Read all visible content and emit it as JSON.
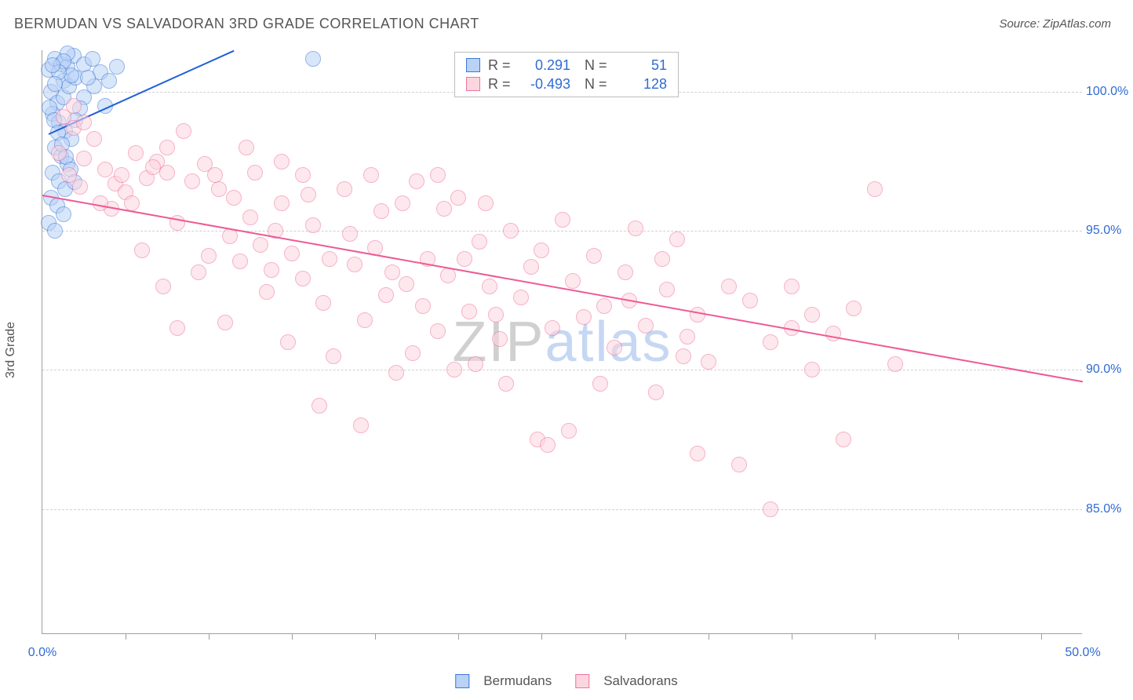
{
  "title": "BERMUDAN VS SALVADORAN 3RD GRADE CORRELATION CHART",
  "source": "Source: ZipAtlas.com",
  "ylabel": "3rd Grade",
  "watermark": {
    "part1": "ZIP",
    "part2": "atlas"
  },
  "chart": {
    "type": "scatter",
    "xlim": [
      0,
      50
    ],
    "ylim": [
      80.5,
      101.5
    ],
    "background_color": "#ffffff",
    "grid_color": "#d0d0d0",
    "axis_color": "#9e9e9e",
    "tick_label_color": "#2f6bd6",
    "xticks_major": [
      0,
      50
    ],
    "xticks_minor": [
      4,
      8,
      12,
      16,
      20,
      24,
      28,
      32,
      36,
      40,
      44,
      48
    ],
    "yticks": [
      85.0,
      90.0,
      95.0,
      100.0
    ],
    "ytick_labels": [
      "85.0%",
      "90.0%",
      "95.0%",
      "100.0%"
    ],
    "xtick_labels": [
      "0.0%",
      "50.0%"
    ],
    "marker_radius": 10,
    "marker_opacity": 0.55,
    "marker_border_width": 1.2
  },
  "series": [
    {
      "name": "Bermudans",
      "fill_color": "#b9d2f6",
      "border_color": "#3e78d6",
      "trend_color": "#1f5ed8",
      "r_value": "0.291",
      "n_value": "51",
      "trend": {
        "x1": 0.3,
        "y1": 98.5,
        "x2": 9.2,
        "y2": 101.5,
        "width": 2.2
      },
      "points": [
        [
          0.3,
          100.8
        ],
        [
          0.6,
          101.2
        ],
        [
          0.9,
          101.0
        ],
        [
          1.2,
          100.9
        ],
        [
          1.5,
          101.3
        ],
        [
          1.0,
          100.4
        ],
        [
          0.4,
          100.0
        ],
        [
          0.7,
          99.6
        ],
        [
          1.0,
          99.8
        ],
        [
          1.3,
          100.2
        ],
        [
          1.6,
          100.5
        ],
        [
          2.0,
          101.0
        ],
        [
          2.4,
          101.2
        ],
        [
          2.8,
          100.7
        ],
        [
          3.2,
          100.4
        ],
        [
          3.6,
          100.9
        ],
        [
          0.5,
          99.2
        ],
        [
          0.8,
          98.9
        ],
        [
          1.1,
          98.6
        ],
        [
          1.4,
          98.3
        ],
        [
          0.6,
          98.0
        ],
        [
          0.9,
          97.7
        ],
        [
          1.2,
          97.4
        ],
        [
          0.5,
          97.1
        ],
        [
          0.8,
          96.8
        ],
        [
          1.1,
          96.5
        ],
        [
          0.4,
          96.2
        ],
        [
          0.7,
          95.9
        ],
        [
          1.0,
          95.6
        ],
        [
          0.3,
          95.3
        ],
        [
          0.6,
          95.0
        ],
        [
          0.35,
          99.45
        ],
        [
          0.55,
          99.0
        ],
        [
          0.75,
          98.55
        ],
        [
          0.95,
          98.1
        ],
        [
          1.15,
          97.65
        ],
        [
          1.35,
          97.2
        ],
        [
          1.55,
          96.75
        ],
        [
          2.5,
          100.2
        ],
        [
          2.0,
          99.8
        ],
        [
          1.8,
          99.4
        ],
        [
          1.6,
          99.0
        ],
        [
          1.4,
          100.6
        ],
        [
          1.2,
          101.4
        ],
        [
          1.0,
          101.1
        ],
        [
          0.8,
          100.7
        ],
        [
          0.6,
          100.3
        ],
        [
          2.2,
          100.5
        ],
        [
          3.0,
          99.5
        ],
        [
          13.0,
          101.2
        ],
        [
          0.5,
          100.95
        ]
      ]
    },
    {
      "name": "Salvadorans",
      "fill_color": "#fcd6df",
      "border_color": "#f073a0",
      "trend_color": "#ee5a94",
      "r_value": "-0.493",
      "n_value": "128",
      "trend": {
        "x1": 0.0,
        "y1": 96.3,
        "x2": 50.0,
        "y2": 89.6,
        "width": 2.2
      },
      "points": [
        [
          1.0,
          99.1
        ],
        [
          1.5,
          98.7
        ],
        [
          2.0,
          98.9
        ],
        [
          2.5,
          98.3
        ],
        [
          2.0,
          97.6
        ],
        [
          3.0,
          97.2
        ],
        [
          3.5,
          96.7
        ],
        [
          4.0,
          96.4
        ],
        [
          4.5,
          97.8
        ],
        [
          5.0,
          96.9
        ],
        [
          5.5,
          97.5
        ],
        [
          6.0,
          97.1
        ],
        [
          6.8,
          98.6
        ],
        [
          7.2,
          96.8
        ],
        [
          7.8,
          97.4
        ],
        [
          8.5,
          96.5
        ],
        [
          9.0,
          94.8
        ],
        [
          9.5,
          93.9
        ],
        [
          10.0,
          95.5
        ],
        [
          10.5,
          94.5
        ],
        [
          11.0,
          93.6
        ],
        [
          11.5,
          96.0
        ],
        [
          12.0,
          94.2
        ],
        [
          12.5,
          93.3
        ],
        [
          13.0,
          95.2
        ],
        [
          13.5,
          92.4
        ],
        [
          14.0,
          90.5
        ],
        [
          14.5,
          96.5
        ],
        [
          15.0,
          93.8
        ],
        [
          15.5,
          91.8
        ],
        [
          16.0,
          94.4
        ],
        [
          16.5,
          92.7
        ],
        [
          17.0,
          89.9
        ],
        [
          17.5,
          93.1
        ],
        [
          18.0,
          96.8
        ],
        [
          18.5,
          94.0
        ],
        [
          19.0,
          91.4
        ],
        [
          19.5,
          93.4
        ],
        [
          20.0,
          96.2
        ],
        [
          20.5,
          92.1
        ],
        [
          21.0,
          94.6
        ],
        [
          21.5,
          93.0
        ],
        [
          22.0,
          91.1
        ],
        [
          22.5,
          95.0
        ],
        [
          23.0,
          92.6
        ],
        [
          23.5,
          93.7
        ],
        [
          24.0,
          94.3
        ],
        [
          24.5,
          91.5
        ],
        [
          25.0,
          95.4
        ],
        [
          25.5,
          93.2
        ],
        [
          26.0,
          91.9
        ],
        [
          26.5,
          94.1
        ],
        [
          27.0,
          92.3
        ],
        [
          27.5,
          90.8
        ],
        [
          28.0,
          93.5
        ],
        [
          28.5,
          95.1
        ],
        [
          29.0,
          91.6
        ],
        [
          29.5,
          89.2
        ],
        [
          30.0,
          92.9
        ],
        [
          30.5,
          94.7
        ],
        [
          31.0,
          91.2
        ],
        [
          31.5,
          92.0
        ],
        [
          32.0,
          90.3
        ],
        [
          33.0,
          93.0
        ],
        [
          34.0,
          92.5
        ],
        [
          35.0,
          91.0
        ],
        [
          36.0,
          93.0
        ],
        [
          37.0,
          90.0
        ],
        [
          38.0,
          91.3
        ],
        [
          39.0,
          92.2
        ],
        [
          40.0,
          96.5
        ],
        [
          41.0,
          90.2
        ],
        [
          8.0,
          94.1
        ],
        [
          9.2,
          96.2
        ],
        [
          10.8,
          92.8
        ],
        [
          11.8,
          91.0
        ],
        [
          13.3,
          88.7
        ],
        [
          14.8,
          94.9
        ],
        [
          16.3,
          95.7
        ],
        [
          17.8,
          90.6
        ],
        [
          19.3,
          95.8
        ],
        [
          20.8,
          90.2
        ],
        [
          22.3,
          89.5
        ],
        [
          23.8,
          87.5
        ],
        [
          24.3,
          87.3
        ],
        [
          10.2,
          97.1
        ],
        [
          6.5,
          95.3
        ],
        [
          7.5,
          93.5
        ],
        [
          8.8,
          91.7
        ],
        [
          12.8,
          96.3
        ],
        [
          15.3,
          88.0
        ],
        [
          3.3,
          95.8
        ],
        [
          4.8,
          94.3
        ],
        [
          5.8,
          93.0
        ],
        [
          6.5,
          91.5
        ],
        [
          2.8,
          96.0
        ],
        [
          1.8,
          96.6
        ],
        [
          1.3,
          97.0
        ],
        [
          0.8,
          97.8
        ],
        [
          33.5,
          86.6
        ],
        [
          35.0,
          85.0
        ],
        [
          31.5,
          87.0
        ],
        [
          38.5,
          87.5
        ],
        [
          37.0,
          92.0
        ],
        [
          36.0,
          91.5
        ],
        [
          28.2,
          92.5
        ],
        [
          29.8,
          94.0
        ],
        [
          30.8,
          90.5
        ],
        [
          11.2,
          95.0
        ],
        [
          12.5,
          97.0
        ],
        [
          13.8,
          94.0
        ],
        [
          26.8,
          89.5
        ],
        [
          25.3,
          87.8
        ],
        [
          20.3,
          94.0
        ],
        [
          21.8,
          92.0
        ],
        [
          16.8,
          93.5
        ],
        [
          18.3,
          92.3
        ],
        [
          19.8,
          90.0
        ],
        [
          3.8,
          97.0
        ],
        [
          4.3,
          96.0
        ],
        [
          5.3,
          97.3
        ],
        [
          6.0,
          98.0
        ],
        [
          8.3,
          97.0
        ],
        [
          9.8,
          98.0
        ],
        [
          11.5,
          97.5
        ],
        [
          15.8,
          97.0
        ],
        [
          17.3,
          96.0
        ],
        [
          19.0,
          97.0
        ],
        [
          21.3,
          96.0
        ],
        [
          1.5,
          99.5
        ]
      ]
    }
  ],
  "legend_top": {
    "r_label": "R =",
    "n_label": "N ="
  },
  "legend_bottom": {
    "items": [
      "Bermudans",
      "Salvadorans"
    ]
  }
}
